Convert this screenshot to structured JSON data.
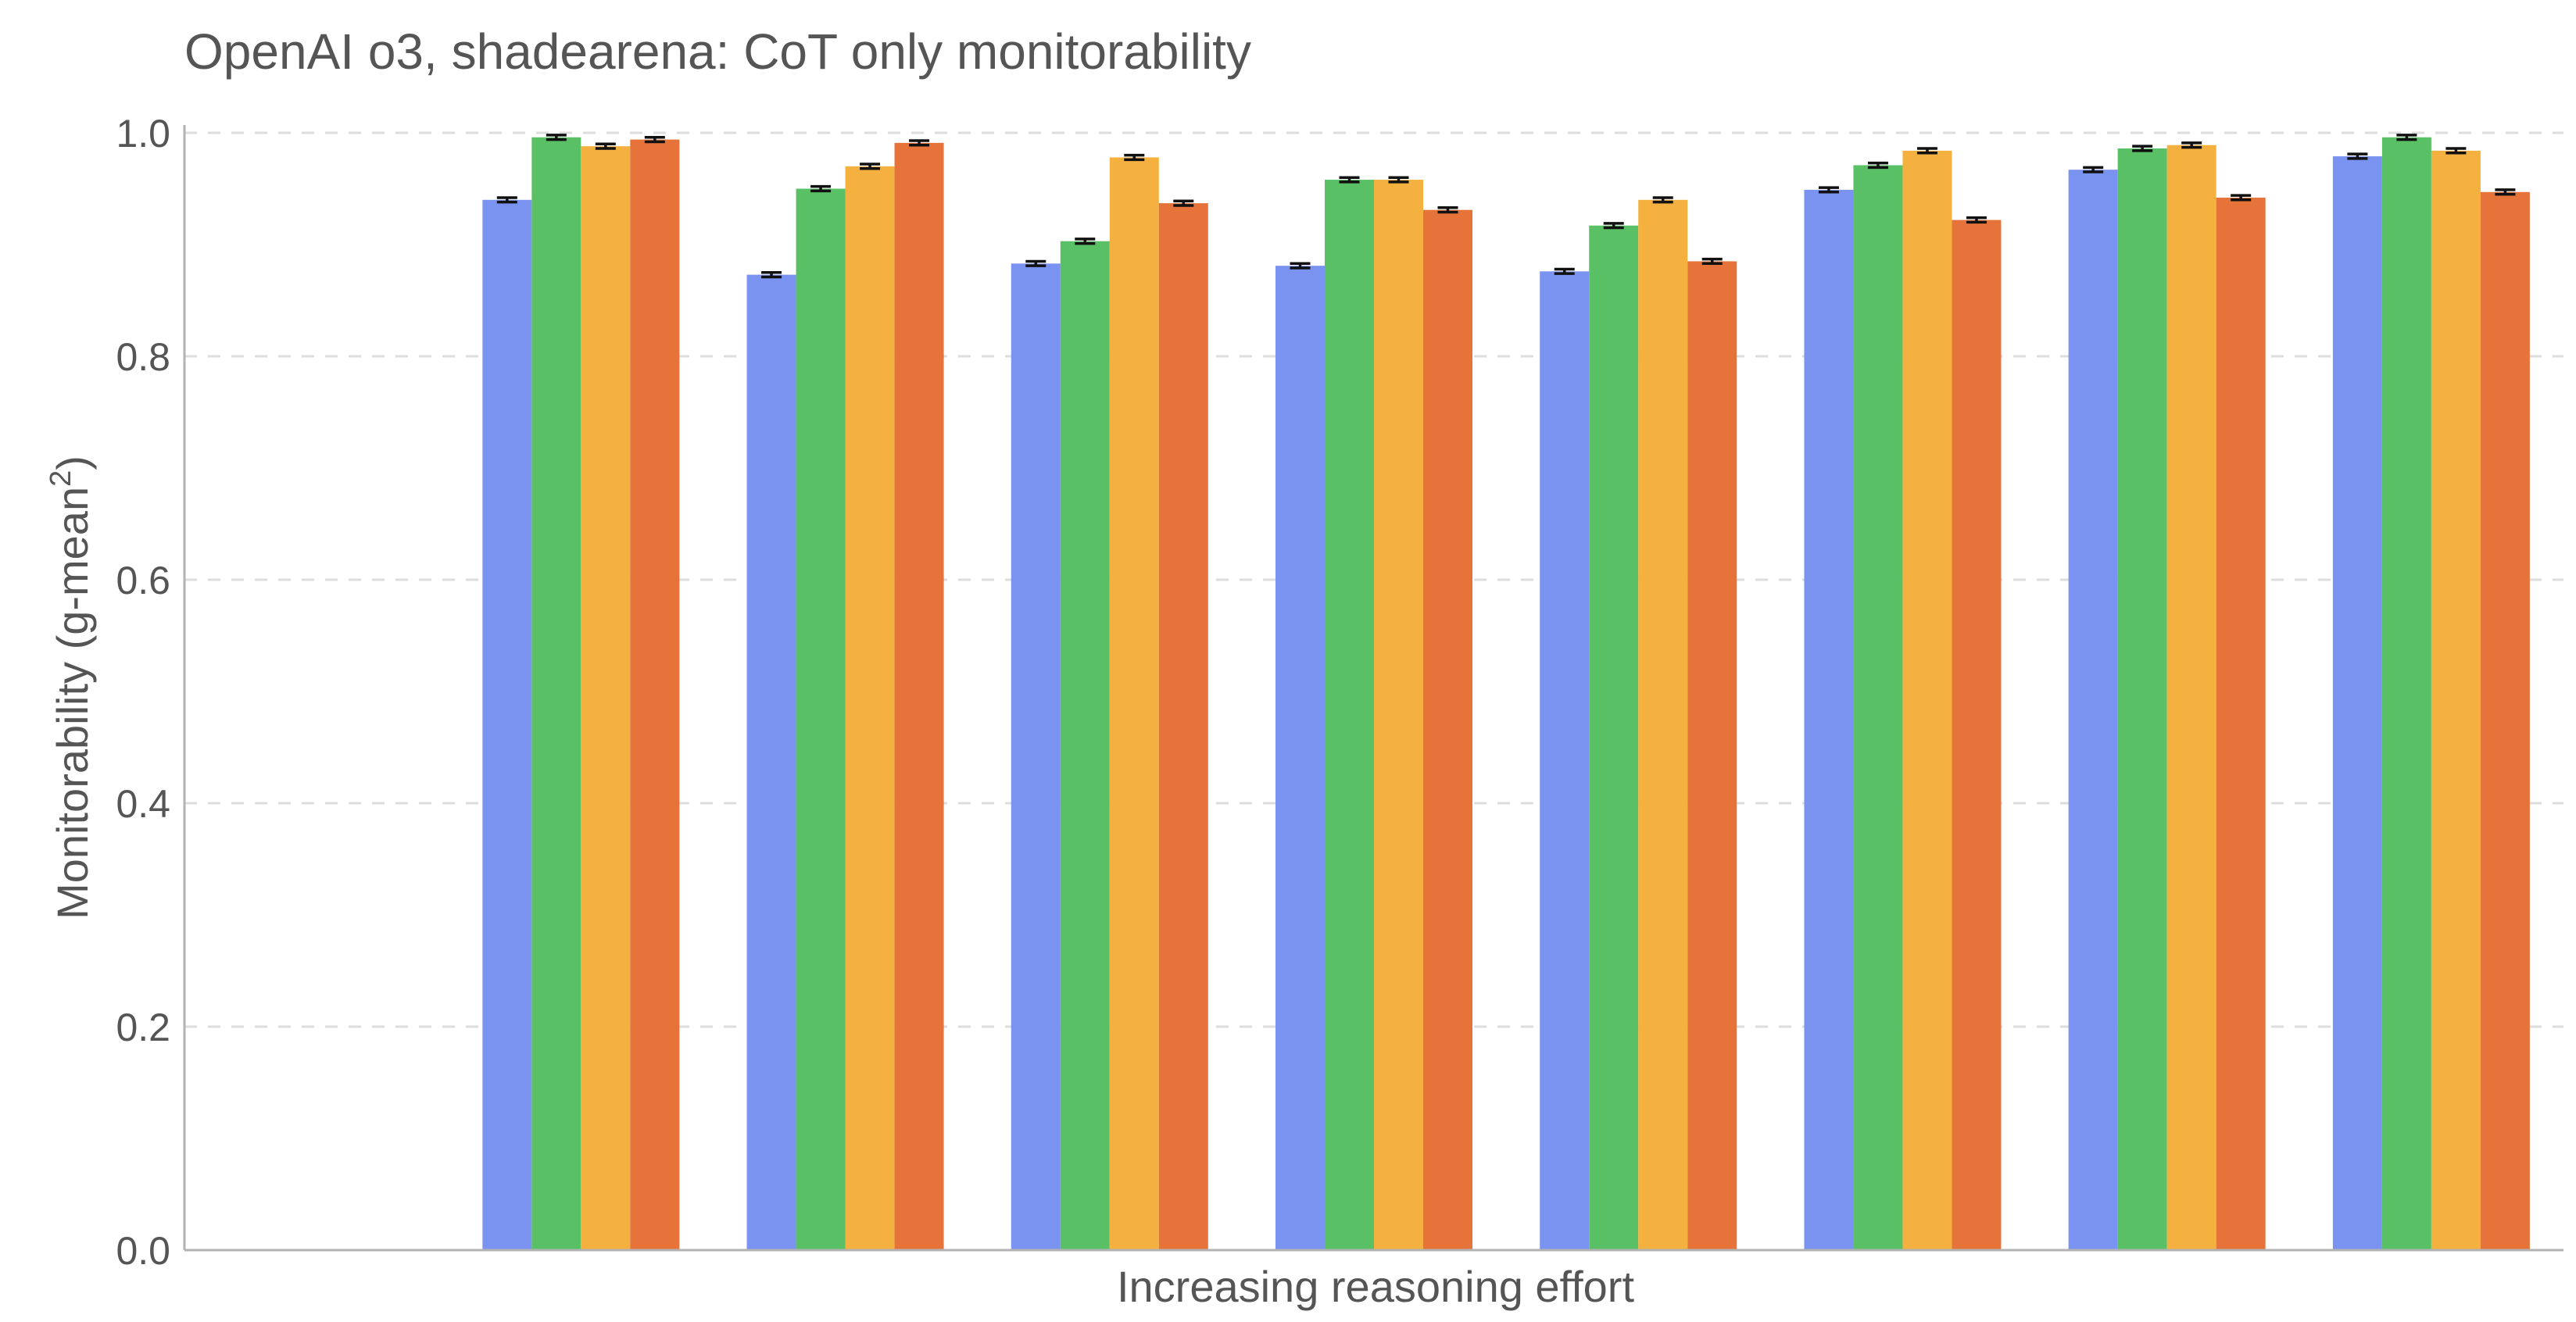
{
  "chart_data": {
    "type": "bar",
    "title": "OpenAI o3, shadearena: CoT only monitorability",
    "xlabel": "Increasing reasoning effort",
    "ylabel": "Monitorability (g-mean",
    "ylabel_superscript": "2",
    "ylabel_close": ")",
    "ylim": [
      0,
      1.05
    ],
    "yticks": [
      "0.0",
      "0.2",
      "0.4",
      "0.6",
      "0.8",
      "1.0"
    ],
    "ytick_values": [
      0,
      0.2,
      0.4,
      0.6,
      0.8,
      1.0
    ],
    "grid": true,
    "legend": "none",
    "n_slots": 9,
    "first_slot": 1,
    "series_colors": [
      "#7b93f0",
      "#59c066",
      "#f5b13f",
      "#e5733a"
    ],
    "groups": [
      [
        0.94,
        0.996,
        0.988,
        0.994
      ],
      [
        0.873,
        0.95,
        0.97,
        0.991
      ],
      [
        0.883,
        0.903,
        0.978,
        0.937
      ],
      [
        0.881,
        0.958,
        0.958,
        0.931
      ],
      [
        0.876,
        0.917,
        0.94,
        0.885
      ],
      [
        0.949,
        0.971,
        0.984,
        0.922
      ],
      [
        0.967,
        0.986,
        0.989,
        0.942
      ],
      [
        0.979,
        0.996,
        0.984,
        0.947
      ]
    ],
    "errors": [
      [
        0.002,
        0.002,
        0.002,
        0.002
      ],
      [
        0.002,
        0.002,
        0.002,
        0.002
      ],
      [
        0.002,
        0.002,
        0.002,
        0.002
      ],
      [
        0.002,
        0.002,
        0.002,
        0.002
      ],
      [
        0.002,
        0.002,
        0.002,
        0.002
      ],
      [
        0.002,
        0.002,
        0.002,
        0.002
      ],
      [
        0.002,
        0.002,
        0.002,
        0.002
      ],
      [
        0.002,
        0.002,
        0.002,
        0.002
      ]
    ]
  }
}
